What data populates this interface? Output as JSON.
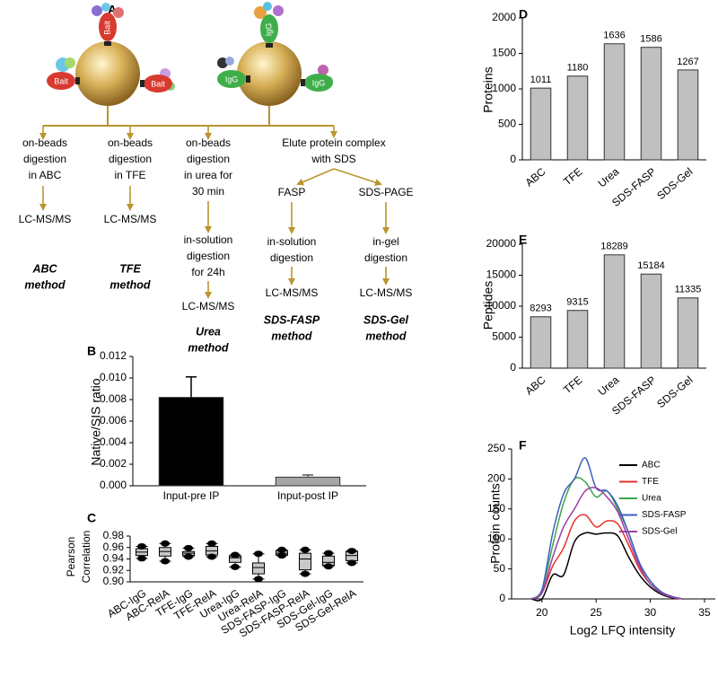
{
  "diagram": {
    "panel_label": "A",
    "bead_labels": [
      "Bait",
      "Bait",
      "Bait",
      "IgG",
      "IgG",
      "IgG"
    ],
    "nodes": [
      {
        "lines": [
          "on-beads",
          "digestion",
          "in ABC"
        ]
      },
      {
        "lines": [
          "LC-MS/MS"
        ]
      },
      {
        "lines": [
          "ABC",
          "method"
        ]
      },
      {
        "lines": [
          "on-beads",
          "digestion",
          "in TFE"
        ]
      },
      {
        "lines": [
          "LC-MS/MS"
        ]
      },
      {
        "lines": [
          "TFE",
          "method"
        ]
      },
      {
        "lines": [
          "on-beads",
          "digestion",
          "in urea for",
          "30 min"
        ]
      },
      {
        "lines": [
          "in-solution",
          "digestion",
          "for 24h"
        ]
      },
      {
        "lines": [
          "LC-MS/MS"
        ]
      },
      {
        "lines": [
          "Urea",
          "method"
        ]
      },
      {
        "lines": [
          "Elute protein complex",
          "with SDS"
        ]
      },
      {
        "lines": [
          "FASP"
        ]
      },
      {
        "lines": [
          "in-solution",
          "digestion"
        ]
      },
      {
        "lines": [
          "LC-MS/MS"
        ]
      },
      {
        "lines": [
          "SDS-FASP",
          "method"
        ]
      },
      {
        "lines": [
          "SDS-PAGE"
        ]
      },
      {
        "lines": [
          "in-gel",
          "digestion"
        ]
      },
      {
        "lines": [
          "LC-MS/MS"
        ]
      },
      {
        "lines": [
          "SDS-Gel",
          "method"
        ]
      }
    ]
  },
  "chart_data": [
    {
      "type": "bar",
      "panel_label": "B",
      "ylabel": "Native/SIS ratio",
      "categories": [
        "Input-pre IP",
        "Input-post IP"
      ],
      "values": [
        0.0082,
        0.0008
      ],
      "errors": [
        0.0019,
        0.0002
      ],
      "colors": [
        "#000000",
        "#a6a6a6"
      ],
      "ylim": [
        0,
        0.012
      ],
      "yticks": [
        {
          "value": 0,
          "label": "0.000"
        },
        {
          "value": 0.002,
          "label": "0.002"
        },
        {
          "value": 0.004,
          "label": "0.004"
        },
        {
          "value": 0.006,
          "label": "0.006"
        },
        {
          "value": 0.008,
          "label": "0.008"
        },
        {
          "value": 0.01,
          "label": "0.010"
        },
        {
          "value": 0.012,
          "label": "0.012"
        }
      ]
    },
    {
      "type": "box",
      "panel_label": "C",
      "ylabel": [
        "Pearson",
        "Correlation"
      ],
      "categories": [
        "ABC-IgG",
        "ABC-RelA",
        "TFE-IgG",
        "TFE-RelA",
        "Urea-IgG",
        "Urea-RelA",
        "SDS-FASP-IgG",
        "SDS-FASP-RelA",
        "SDS-Gel-IgG",
        "SDS-Gel-RelA"
      ],
      "min": [
        0.941,
        0.936,
        0.944,
        0.944,
        0.926,
        0.905,
        0.946,
        0.914,
        0.927,
        0.933
      ],
      "q1": [
        0.946,
        0.945,
        0.946,
        0.947,
        0.934,
        0.914,
        0.947,
        0.921,
        0.929,
        0.937
      ],
      "median": [
        0.952,
        0.953,
        0.95,
        0.954,
        0.942,
        0.925,
        0.95,
        0.94,
        0.934,
        0.946
      ],
      "q3": [
        0.958,
        0.96,
        0.953,
        0.962,
        0.945,
        0.933,
        0.954,
        0.95,
        0.945,
        0.953
      ],
      "max": [
        0.962,
        0.967,
        0.959,
        0.967,
        0.947,
        0.949,
        0.956,
        0.956,
        0.95,
        0.954
      ],
      "color": "#c8c8c8",
      "ylim": [
        0.9,
        0.98
      ],
      "yticks": [
        {
          "value": 0.9,
          "label": "0.90"
        },
        {
          "value": 0.92,
          "label": "0.92"
        },
        {
          "value": 0.94,
          "label": "0.94"
        },
        {
          "value": 0.96,
          "label": "0.96"
        },
        {
          "value": 0.98,
          "label": "0.98"
        }
      ]
    },
    {
      "type": "bar",
      "panel_label": "D",
      "ylabel": "Proteins",
      "categories": [
        "ABC",
        "TFE",
        "Urea",
        "SDS-FASP",
        "SDS-Gel"
      ],
      "values": [
        1011,
        1180,
        1636,
        1586,
        1267
      ],
      "color": "#c0c0c0",
      "ylim": [
        0,
        2000
      ],
      "yticks": [
        0,
        500,
        1000,
        1500,
        2000
      ]
    },
    {
      "type": "bar",
      "panel_label": "E",
      "ylabel": "Peptides",
      "categories": [
        "ABC",
        "TFE",
        "Urea",
        "SDS-FASP",
        "SDS-Gel"
      ],
      "values": [
        8293,
        9315,
        18289,
        15184,
        11335
      ],
      "color": "#c0c0c0",
      "ylim": [
        0,
        20000
      ],
      "yticks": [
        0,
        5000,
        10000,
        15000,
        20000
      ]
    },
    {
      "type": "line",
      "panel_label": "F",
      "xlabel": "Log2 LFQ intensity",
      "ylabel": "Protein counts",
      "x": [
        19,
        20,
        21,
        22,
        23,
        24,
        25,
        26,
        27,
        28,
        29,
        30,
        31,
        32,
        33
      ],
      "series": [
        {
          "name": "ABC",
          "color": "#000000",
          "values": [
            0,
            0,
            40,
            40,
            95,
            110,
            108,
            110,
            105,
            70,
            40,
            20,
            8,
            2,
            0
          ]
        },
        {
          "name": "TFE",
          "color": "#e8302a",
          "values": [
            0,
            10,
            55,
            85,
            130,
            140,
            120,
            130,
            125,
            90,
            50,
            25,
            10,
            3,
            0
          ]
        },
        {
          "name": "Urea",
          "color": "#3aa64a",
          "values": [
            0,
            15,
            90,
            160,
            200,
            195,
            170,
            180,
            150,
            110,
            60,
            30,
            12,
            4,
            0
          ]
        },
        {
          "name": "SDS-FASP",
          "color": "#3b5fc0",
          "values": [
            0,
            15,
            110,
            175,
            200,
            235,
            185,
            180,
            155,
            110,
            60,
            30,
            12,
            4,
            0
          ]
        },
        {
          "name": "SDS-Gel",
          "color": "#9b3fa6",
          "values": [
            0,
            10,
            70,
            120,
            150,
            180,
            185,
            170,
            145,
            100,
            55,
            25,
            10,
            3,
            0
          ]
        }
      ],
      "xlim": [
        17.2,
        36
      ],
      "xticks": [
        20,
        25,
        30,
        35
      ],
      "ylim": [
        0,
        250
      ],
      "yticks": [
        0,
        50,
        100,
        150,
        200,
        250
      ]
    }
  ]
}
